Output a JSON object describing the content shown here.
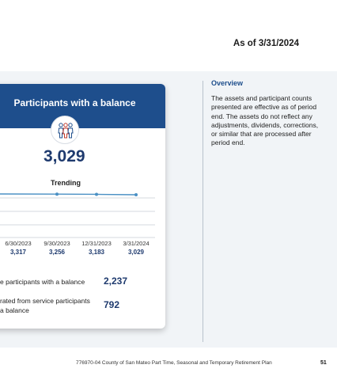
{
  "as_of": "As of 3/31/2024",
  "card": {
    "title": "Participants with a balance",
    "icon": "people-icon",
    "total": "3,029",
    "trending_label": "Trending",
    "periods": [
      {
        "date": "6/30/2023",
        "value": "3,317"
      },
      {
        "date": "9/30/2023",
        "value": "3,256"
      },
      {
        "date": "12/31/2023",
        "value": "3,183"
      },
      {
        "date": "3/31/2024",
        "value": "3,029"
      }
    ],
    "stats": [
      {
        "label_line1": "e participants with a balance",
        "label_line2": "",
        "value": "2,237"
      },
      {
        "label_line1": "rated from service participants",
        "label_line2": "a balance",
        "value": "792"
      }
    ]
  },
  "overview": {
    "title": "Overview",
    "body": "The assets and participant counts presented are effective as of period end. The assets do not reflect any adjustments, dividends, corrections, or similar that are processed after period end."
  },
  "footer": {
    "text": "776970-04 County of San Mateo Part Time, Seasonal and Temporary Retirement Plan",
    "page": "51"
  },
  "chart_data": {
    "type": "line",
    "x": [
      "6/30/2023",
      "9/30/2023",
      "12/31/2023",
      "3/31/2024"
    ],
    "series": [
      {
        "values": [
          3317,
          3256,
          3183,
          3029
        ]
      }
    ],
    "colors": {
      "line": "#4a90c4",
      "grid": "#c9ced4"
    }
  }
}
